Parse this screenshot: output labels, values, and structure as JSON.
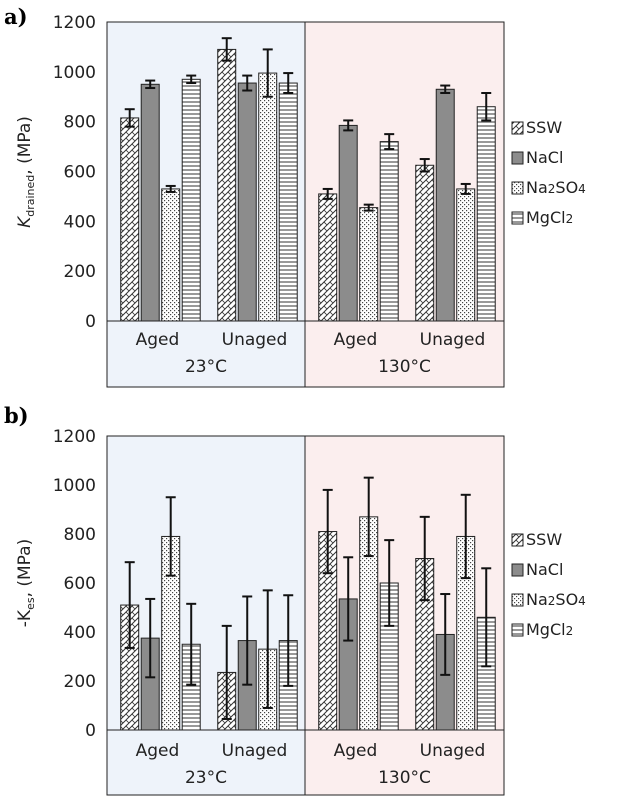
{
  "colors": {
    "panel_23": "#eef3fa",
    "panel_130": "#fbeeee",
    "bar_stroke": "#222222",
    "nacl_fill": "#8c8c8c"
  },
  "legend": [
    "SSW",
    "NaCl",
    "Na2SO4",
    "MgCl2"
  ],
  "chart_data": [
    {
      "type": "bar",
      "panel_label": "a)",
      "ylabel": {
        "prefix": "K",
        "subscript": "drained",
        "suffix": ", (MPa)"
      },
      "ylim": [
        0,
        1200
      ],
      "yticks": [
        "0",
        "200",
        "400",
        "600",
        "800",
        "1000",
        "1200"
      ],
      "temperatures": [
        "23°C",
        "130°C"
      ],
      "categories": [
        "Aged",
        "Unaged",
        "Aged",
        "Unaged"
      ],
      "series": [
        {
          "name": "SSW",
          "values": [
            815,
            1090,
            510,
            625
          ],
          "errors": [
            35,
            45,
            20,
            25
          ]
        },
        {
          "name": "NaCl",
          "values": [
            950,
            955,
            785,
            930
          ],
          "errors": [
            15,
            30,
            20,
            15
          ]
        },
        {
          "name": "Na2SO4",
          "values": [
            530,
            995,
            455,
            530
          ],
          "errors": [
            12,
            95,
            12,
            20
          ]
        },
        {
          "name": "MgCl2",
          "values": [
            970,
            955,
            720,
            860
          ],
          "errors": [
            15,
            40,
            30,
            55
          ]
        }
      ]
    },
    {
      "type": "bar",
      "panel_label": "b)",
      "ylabel": {
        "prefix": "-K",
        "subscript": "es",
        "suffix": ", (MPa)"
      },
      "ylim": [
        0,
        1200
      ],
      "yticks": [
        "0",
        "200",
        "400",
        "600",
        "800",
        "1000",
        "1200"
      ],
      "temperatures": [
        "23°C",
        "130°C"
      ],
      "categories": [
        "Aged",
        "Unaged",
        "Aged",
        "Unaged"
      ],
      "series": [
        {
          "name": "SSW",
          "values": [
            510,
            235,
            810,
            700
          ],
          "errors": [
            175,
            190,
            170,
            170
          ]
        },
        {
          "name": "NaCl",
          "values": [
            375,
            365,
            535,
            390
          ],
          "errors": [
            160,
            180,
            170,
            165
          ]
        },
        {
          "name": "Na2SO4",
          "values": [
            790,
            330,
            870,
            790
          ],
          "errors": [
            160,
            240,
            160,
            170
          ]
        },
        {
          "name": "MgCl2",
          "values": [
            350,
            365,
            600,
            460
          ],
          "errors": [
            165,
            185,
            175,
            200
          ]
        }
      ]
    }
  ]
}
